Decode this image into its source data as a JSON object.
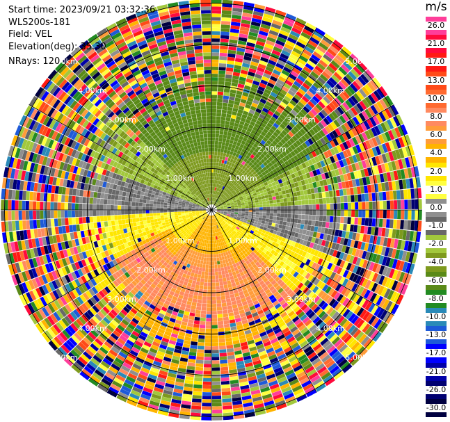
{
  "header": {
    "start_time": "Start time: 2023/09/21 03:32:36",
    "site": "WLS200s-181",
    "field": "Field: VEL",
    "elevation": "Elevation(deg): 35.30",
    "nrays": "NRays: 120"
  },
  "colorbar": {
    "unit": "m/s",
    "ticks": [
      "26.0",
      "21.0",
      "17.0",
      "13.0",
      "10.0",
      "8.0",
      "6.0",
      "4.0",
      "2.0",
      "1.0",
      "0.0",
      "-1.0",
      "-2.0",
      "-4.0",
      "-6.0",
      "-8.0",
      "-10.0",
      "-13.0",
      "-17.0",
      "-21.0",
      "-26.0",
      "-30.0"
    ],
    "colors": [
      "#ff3e9a",
      "#ff0a3c",
      "#ff1a14",
      "#ff4a18",
      "#ff6a30",
      "#ff8a60",
      "#ff9c3a",
      "#ffb400",
      "#ffe600",
      "#ffff40",
      "#8f8f8f",
      "#686868",
      "#a2c83c",
      "#7e9a1e",
      "#5a8a18",
      "#228b22",
      "#2a8ab8",
      "#1e5ad8",
      "#0000ff",
      "#0000a8",
      "#000070",
      "#000040"
    ]
  },
  "range_labels": [
    "1.00km",
    "2.00km",
    "3.00km",
    "4.00km",
    "5.00km"
  ]
}
